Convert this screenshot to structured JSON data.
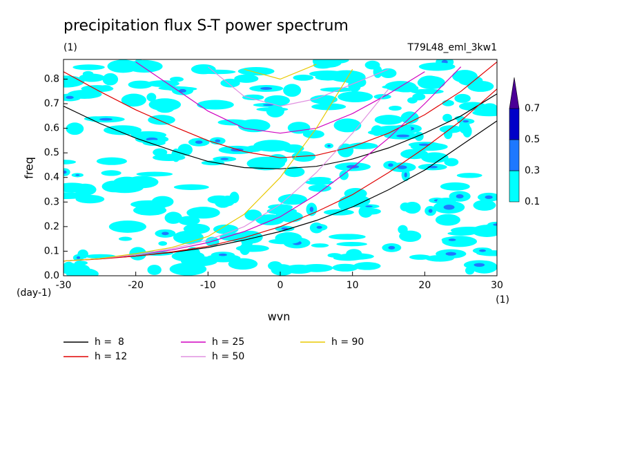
{
  "chart_data": {
    "type": "spectrum",
    "title": "precipitation flux S-T power spectrum",
    "subtitle_left": "(1)",
    "subtitle_right": "T79L48_eml_3kw1",
    "xlabel": "wvn",
    "ylabel": "freq",
    "yunit": "(day-1)",
    "xunit": "(1)",
    "xlim": [
      -30,
      30
    ],
    "ylim": [
      0,
      0.88
    ],
    "xticks": [
      -30,
      -20,
      -10,
      0,
      10,
      20,
      30
    ],
    "yticks": [
      {
        "value": 0,
        "label": "0.0"
      },
      0.1,
      0.2,
      0.3,
      0.4,
      0.5,
      0.6,
      0.7,
      0.8
    ],
    "x": [
      -30,
      -25,
      -20,
      -15,
      -10,
      -5,
      0,
      5,
      10,
      15,
      20,
      25,
      30
    ],
    "series": [
      {
        "name": "h =  8",
        "color": "#000000",
        "values": [
          0.69,
          0.62,
          0.56,
          0.51,
          0.465,
          0.44,
          0.435,
          0.445,
          0.475,
          0.52,
          0.58,
          0.65,
          0.74
        ],
        "values2": [
          0.06,
          0.07,
          0.08,
          0.095,
          0.115,
          0.145,
          0.18,
          0.225,
          0.28,
          0.35,
          0.43,
          0.53,
          0.63
        ]
      },
      {
        "name": "h = 12",
        "color": "#e00000",
        "values": [
          0.83,
          0.75,
          0.675,
          0.61,
          0.55,
          0.505,
          0.48,
          0.49,
          0.525,
          0.58,
          0.655,
          0.75,
          0.87
        ],
        "values2": [
          0.06,
          0.068,
          0.08,
          0.097,
          0.12,
          0.155,
          0.2,
          0.26,
          0.33,
          0.42,
          0.52,
          0.63,
          0.76
        ]
      },
      {
        "name": "h = 25",
        "color": "#d000c0",
        "values": [
          null,
          null,
          0.87,
          0.77,
          0.67,
          0.6,
          0.58,
          0.6,
          0.66,
          0.74,
          0.83,
          null,
          null
        ],
        "values2": [
          0.06,
          0.07,
          0.085,
          0.105,
          0.135,
          0.18,
          0.24,
          0.33,
          0.44,
          0.56,
          0.7,
          0.85,
          null
        ]
      },
      {
        "name": "h = 50",
        "color": "#e090e0",
        "values": [
          null,
          null,
          null,
          null,
          0.85,
          0.73,
          0.69,
          0.72,
          0.78,
          0.84,
          null,
          null,
          null
        ],
        "values2": [
          0.06,
          0.07,
          0.085,
          0.11,
          0.145,
          0.2,
          0.29,
          0.42,
          0.58,
          0.76,
          null,
          null,
          null
        ]
      },
      {
        "name": "h = 90",
        "color": "#e8c800",
        "values": [
          null,
          null,
          null,
          null,
          null,
          0.84,
          0.8,
          0.86,
          null,
          null,
          null,
          null,
          null
        ],
        "values2": [
          0.06,
          0.07,
          0.09,
          0.115,
          0.16,
          0.25,
          0.4,
          0.6,
          0.84,
          null,
          null,
          null,
          null
        ]
      }
    ],
    "colorbar": {
      "levels": [
        0.1,
        0.3,
        0.5,
        0.7
      ],
      "colors": [
        "#00ffff",
        "#1e78ff",
        "#0000c8",
        "#4b0096"
      ]
    }
  }
}
